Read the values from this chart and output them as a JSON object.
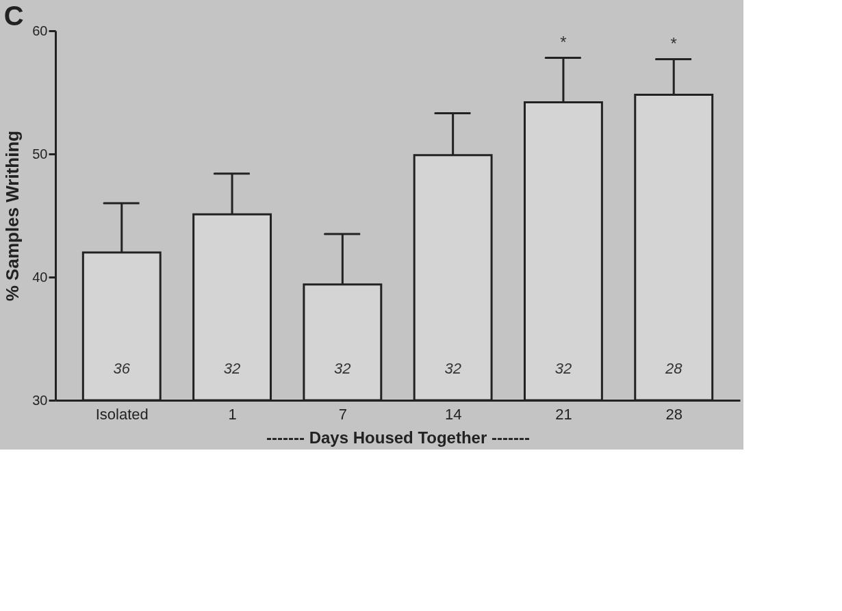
{
  "chart_data": {
    "type": "bar",
    "title": "C",
    "ylabel": "% Samples Writhing",
    "xlabel": "------- Days Housed Together -------",
    "categories": [
      "Isolated",
      "1",
      "7",
      "14",
      "21",
      "28"
    ],
    "values": [
      42.0,
      45.1,
      39.4,
      49.9,
      54.2,
      54.8
    ],
    "errors": [
      [
        42.0,
        46.0
      ],
      [
        45.1,
        48.4
      ],
      [
        39.4,
        43.5
      ],
      [
        49.9,
        53.3
      ],
      [
        54.2,
        57.8
      ],
      [
        54.8,
        57.7
      ]
    ],
    "color": "#d4d4d4",
    "ylim": [
      30,
      60
    ],
    "yticks": [
      30,
      40,
      50,
      60
    ],
    "grid": false,
    "value_labels": [
      null,
      null,
      null,
      null,
      "*",
      "*"
    ],
    "annotations": [
      "36",
      "32",
      "32",
      "32",
      "32",
      "28"
    ]
  }
}
